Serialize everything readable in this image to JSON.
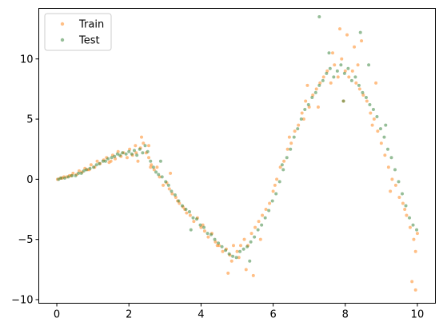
{
  "chart_data": {
    "type": "scatter",
    "title": "",
    "xlabel": "",
    "ylabel": "",
    "xlim": [
      -0.5,
      10.5
    ],
    "ylim": [
      -10.3,
      14.2
    ],
    "xticks": [
      "0",
      "2",
      "4",
      "6",
      "8",
      "10"
    ],
    "yticks": [
      "-10",
      "-5",
      "0",
      "5",
      "10"
    ],
    "xtick_values": [
      0,
      2,
      4,
      6,
      8,
      10
    ],
    "ytick_values": [
      -10,
      -5,
      0,
      5,
      10
    ],
    "grid": false,
    "legend_position": "top-left",
    "series": [
      {
        "name": "Train",
        "color": "#ff7f0e",
        "x": [
          0.02,
          0.1,
          0.2,
          0.28,
          0.35,
          0.45,
          0.55,
          0.62,
          0.7,
          0.78,
          0.85,
          0.95,
          1.05,
          1.12,
          1.2,
          1.3,
          1.38,
          1.45,
          1.55,
          1.62,
          1.7,
          1.78,
          1.85,
          1.95,
          2.02,
          2.1,
          2.18,
          2.25,
          2.32,
          2.4,
          2.48,
          2.55,
          2.62,
          2.7,
          2.78,
          2.85,
          2.95,
          3.05,
          3.12,
          3.2,
          3.3,
          3.4,
          3.5,
          3.6,
          3.7,
          3.8,
          3.9,
          4.0,
          4.1,
          4.2,
          4.3,
          4.4,
          4.5,
          4.6,
          4.7,
          4.8,
          4.9,
          5.0,
          5.1,
          5.2,
          5.3,
          5.4,
          5.5,
          5.6,
          5.7,
          5.8,
          5.9,
          6.0,
          6.1,
          6.2,
          6.3,
          6.4,
          6.5,
          6.6,
          6.7,
          6.8,
          6.9,
          7.0,
          7.1,
          7.2,
          7.3,
          7.4,
          7.5,
          7.6,
          7.7,
          7.8,
          7.9,
          8.0,
          8.1,
          8.2,
          8.3,
          8.4,
          8.5,
          8.6,
          8.7,
          8.8,
          8.9,
          9.0,
          9.1,
          9.2,
          9.3,
          9.4,
          9.5,
          9.6,
          9.7,
          9.8,
          9.9,
          10.0,
          0.15,
          0.4,
          0.9,
          1.5,
          2.2,
          2.6,
          3.15,
          3.55,
          4.05,
          4.45,
          4.85,
          5.25,
          5.65,
          6.05,
          6.45,
          6.85,
          7.25,
          7.65,
          8.05,
          8.45,
          8.85,
          9.25,
          9.65,
          9.95,
          2.35,
          2.55,
          4.75,
          5.05,
          7.85,
          8.25,
          7.95,
          8.35,
          9.85,
          9.95,
          8.75,
          6.95,
          3.35,
          5.45
        ],
        "y": [
          0.0,
          0.1,
          0.2,
          0.2,
          0.3,
          0.5,
          0.4,
          0.7,
          0.6,
          0.9,
          0.8,
          1.2,
          1.0,
          1.5,
          1.3,
          1.6,
          1.8,
          1.4,
          2.0,
          1.7,
          2.3,
          1.9,
          2.2,
          1.8,
          2.5,
          2.0,
          2.8,
          1.5,
          2.6,
          3.0,
          2.2,
          1.8,
          1.2,
          0.8,
          1.0,
          0.2,
          -0.5,
          -0.3,
          -0.8,
          -1.2,
          -1.5,
          -2.0,
          -2.3,
          -2.8,
          -3.0,
          -3.5,
          -3.2,
          -4.0,
          -4.3,
          -4.8,
          -4.5,
          -5.2,
          -5.5,
          -6.0,
          -5.8,
          -6.3,
          -5.5,
          -6.0,
          -5.5,
          -5.0,
          -5.5,
          -4.5,
          -4.0,
          -3.5,
          -3.0,
          -2.5,
          -2.0,
          -1.0,
          0.0,
          1.0,
          1.5,
          2.5,
          3.0,
          4.0,
          4.5,
          5.5,
          6.5,
          6.0,
          7.0,
          7.5,
          8.0,
          8.5,
          9.0,
          8.0,
          9.5,
          8.5,
          10.0,
          9.0,
          8.5,
          9.0,
          8.0,
          7.5,
          7.0,
          6.5,
          5.5,
          5.0,
          4.0,
          3.0,
          2.0,
          1.0,
          0.0,
          -0.5,
          -1.5,
          -2.0,
          -3.0,
          -4.0,
          -5.0,
          -4.5,
          0.1,
          0.3,
          0.8,
          1.5,
          2.2,
          1.0,
          0.5,
          -2.5,
          -3.8,
          -5.5,
          -6.8,
          -7.5,
          -5.0,
          -0.5,
          3.5,
          5.0,
          6.0,
          10.5,
          12.0,
          11.5,
          8.0,
          -1.0,
          -2.5,
          -9.2,
          3.5,
          2.8,
          -7.8,
          -6.5,
          12.5,
          11.0,
          6.5,
          9.5,
          -8.5,
          -6.0,
          4.5,
          7.8,
          -1.8,
          -8.0
        ]
      },
      {
        "name": "Test",
        "color": "#2e7d32",
        "x": [
          0.05,
          0.12,
          0.22,
          0.32,
          0.42,
          0.52,
          0.6,
          0.68,
          0.75,
          0.82,
          0.92,
          1.02,
          1.1,
          1.18,
          1.28,
          1.35,
          1.42,
          1.52,
          1.6,
          1.68,
          1.75,
          1.82,
          1.92,
          2.0,
          2.08,
          2.15,
          2.22,
          2.3,
          2.38,
          2.45,
          2.52,
          2.6,
          2.68,
          2.75,
          2.82,
          2.92,
          3.02,
          3.1,
          3.18,
          3.28,
          3.38,
          3.48,
          3.58,
          3.68,
          3.78,
          3.88,
          3.98,
          4.08,
          4.18,
          4.28,
          4.38,
          4.48,
          4.58,
          4.68,
          4.78,
          4.88,
          4.98,
          5.08,
          5.18,
          5.28,
          5.38,
          5.48,
          5.58,
          5.68,
          5.78,
          5.88,
          5.98,
          6.08,
          6.18,
          6.28,
          6.38,
          6.48,
          6.58,
          6.68,
          6.78,
          6.88,
          6.98,
          7.08,
          7.18,
          7.28,
          7.38,
          7.48,
          7.58,
          7.68,
          7.78,
          7.88,
          7.98,
          8.08,
          8.18,
          8.28,
          8.38,
          8.48,
          8.58,
          8.68,
          8.78,
          8.88,
          8.98,
          9.08,
          9.18,
          9.28,
          9.38,
          9.48,
          9.58,
          9.68,
          9.78,
          9.88,
          9.98,
          7.28,
          8.42,
          7.55,
          9.12,
          2.88,
          3.72,
          5.35,
          6.25,
          7.95,
          8.65
        ],
        "y": [
          0.0,
          0.1,
          0.1,
          0.2,
          0.3,
          0.3,
          0.5,
          0.5,
          0.7,
          0.8,
          0.9,
          1.0,
          1.2,
          1.3,
          1.5,
          1.5,
          1.7,
          1.8,
          1.9,
          2.1,
          2.0,
          2.2,
          2.1,
          2.3,
          2.1,
          2.4,
          2.0,
          2.5,
          2.2,
          2.8,
          2.3,
          1.5,
          1.0,
          0.6,
          0.4,
          0.2,
          -0.2,
          -0.5,
          -1.0,
          -1.3,
          -1.8,
          -2.2,
          -2.5,
          -2.7,
          -3.2,
          -3.3,
          -3.8,
          -4.0,
          -4.5,
          -4.6,
          -5.0,
          -5.3,
          -5.6,
          -5.9,
          -6.2,
          -6.4,
          -6.5,
          -6.0,
          -5.8,
          -5.6,
          -5.2,
          -4.8,
          -4.2,
          -3.8,
          -3.2,
          -2.6,
          -1.8,
          -1.2,
          -0.2,
          0.8,
          1.8,
          2.5,
          3.5,
          4.2,
          5.0,
          5.8,
          6.2,
          6.8,
          7.2,
          7.8,
          8.2,
          8.8,
          9.2,
          8.5,
          9.0,
          9.5,
          8.8,
          9.2,
          8.2,
          8.5,
          7.8,
          7.2,
          6.8,
          6.2,
          5.8,
          5.2,
          4.2,
          3.5,
          2.5,
          1.8,
          0.8,
          -0.2,
          -1.2,
          -2.2,
          -3.2,
          -3.8,
          -4.2,
          13.5,
          12.2,
          10.5,
          4.5,
          1.5,
          -4.2,
          -6.8,
          1.2,
          6.5,
          9.5
        ]
      }
    ]
  }
}
